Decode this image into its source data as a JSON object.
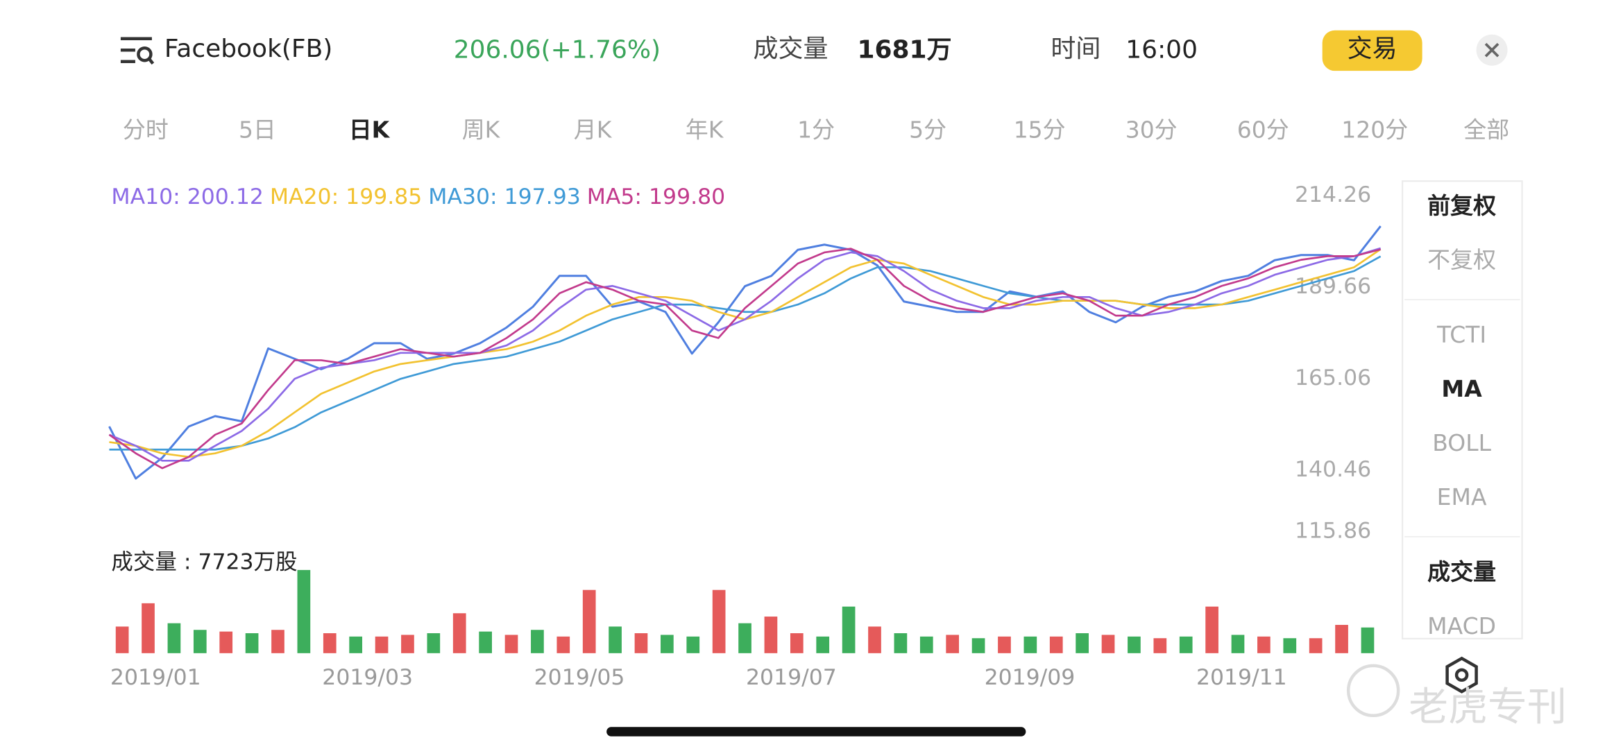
{
  "header": {
    "title": "Facebook(FB)",
    "price": "206.06(+1.76%)",
    "volume_label": "成交量",
    "volume": "1681万",
    "time_label": "时间",
    "time": "16:00",
    "trade_button": "交易"
  },
  "tabs": [
    "分时",
    "5日",
    "日K",
    "周K",
    "月K",
    "年K",
    "1分",
    "5分",
    "15分",
    "30分",
    "60分",
    "120分",
    "全部"
  ],
  "active_tab": 2,
  "side_panel": [
    [
      {
        "label": "前复权",
        "active": true
      },
      {
        "label": "不复权",
        "active": false
      }
    ],
    [
      {
        "label": "TCTI",
        "active": false
      },
      {
        "label": "MA",
        "active": true
      },
      {
        "label": "BOLL",
        "active": false
      },
      {
        "label": "EMA",
        "active": false
      }
    ],
    [
      {
        "label": "成交量",
        "active": true
      },
      {
        "label": "MACD",
        "active": false
      }
    ]
  ],
  "watermark": "老虎专刊",
  "chart_data": [
    {
      "type": "line",
      "categories": [
        "2019/01",
        null,
        null,
        null,
        null,
        null,
        null,
        null,
        "2019/03",
        null,
        null,
        null,
        null,
        null,
        null,
        null,
        "2019/05",
        null,
        null,
        null,
        null,
        null,
        null,
        null,
        "2019/07",
        null,
        null,
        null,
        null,
        null,
        null,
        null,
        null,
        "2019/09",
        null,
        null,
        null,
        null,
        null,
        null,
        null,
        "2019/11",
        null,
        null,
        null,
        null,
        null,
        null,
        null
      ],
      "ylim": [
        115.86,
        214.26
      ],
      "yticks": [
        214.26,
        189.66,
        165.06,
        140.46,
        115.86
      ],
      "series": [
        {
          "color": "#4f7fe0",
          "values": [
            152.2,
            138.2,
            143.8,
            152.2,
            155.0,
            153.6,
            173.2,
            170.4,
            167.6,
            170.4,
            174.6,
            174.6,
            170.4,
            171.8,
            174.6,
            178.8,
            184.4,
            192.7,
            192.7,
            184.4,
            185.8,
            183.0,
            171.8,
            180.2,
            189.9,
            192.7,
            199.7,
            201.1,
            199.7,
            195.5,
            185.8,
            184.4,
            183.0,
            183.0,
            188.5,
            187.1,
            188.5,
            183.0,
            180.2,
            184.4,
            187.1,
            188.5,
            191.3,
            192.7,
            196.9,
            198.3,
            198.3,
            196.9,
            206.06
          ]
        },
        {
          "name": "MA30: 197.93",
          "color": "#3f9ad6",
          "values": [
            146,
            146,
            146,
            146,
            146,
            147,
            149,
            152,
            156,
            159,
            162,
            165,
            167,
            169,
            170,
            171,
            173,
            175,
            178,
            181,
            183,
            185,
            185,
            184,
            183,
            183,
            185,
            188,
            192,
            195,
            195,
            194,
            192,
            190,
            188,
            187,
            186,
            186,
            186,
            185,
            185,
            185,
            185,
            186,
            188,
            190,
            192,
            194,
            197.93
          ]
        },
        {
          "name": "MA20: 199.85",
          "color": "#f2c230",
          "values": [
            148,
            147,
            145,
            144,
            145,
            147,
            151,
            156,
            161,
            164,
            167,
            169,
            170,
            171,
            172,
            173,
            175,
            178,
            182,
            185,
            187,
            187,
            186,
            183,
            181,
            183,
            187,
            191,
            195,
            197,
            196,
            193,
            190,
            187,
            185,
            185,
            186,
            186,
            186,
            185,
            184,
            184,
            185,
            187,
            189,
            191,
            193,
            195,
            199.85
          ]
        },
        {
          "name": "MA10: 200.12",
          "color": "#8c6ae6",
          "values": [
            150,
            147,
            143,
            143,
            147,
            151,
            157,
            165,
            168,
            169,
            170,
            172,
            172,
            172,
            172,
            174,
            178,
            184,
            189,
            190,
            188,
            186,
            182,
            178,
            181,
            186,
            192,
            197,
            199,
            198,
            194,
            189,
            186,
            184,
            184,
            186,
            187,
            187,
            184,
            182,
            183,
            185,
            188,
            190,
            193,
            195,
            197,
            198,
            200.12
          ]
        },
        {
          "name": "MA5: 199.80",
          "color": "#c23a8c",
          "values": [
            150,
            145,
            141,
            144,
            150,
            153,
            162,
            170,
            170,
            169,
            171,
            173,
            172,
            171,
            172,
            176,
            181,
            188,
            191,
            189,
            186,
            185,
            178,
            176,
            184,
            190,
            196,
            199,
            200,
            197,
            190,
            186,
            184,
            183,
            185,
            187,
            188,
            186,
            182,
            182,
            185,
            187,
            190,
            192,
            195,
            197,
            198,
            198,
            199.8
          ]
        }
      ],
      "legend_order": [
        3,
        2,
        1,
        4
      ]
    },
    {
      "type": "bar",
      "title": "成交量 : 7723万股",
      "ylim": [
        0,
        25000
      ],
      "values": [
        8000,
        15000,
        9000,
        7000,
        6500,
        6000,
        7000,
        25000,
        6000,
        5000,
        5000,
        5500,
        6000,
        12000,
        6500,
        5500,
        7000,
        5000,
        19000,
        8000,
        6000,
        5500,
        5000,
        19000,
        9000,
        11000,
        6000,
        5000,
        14000,
        8000,
        6000,
        5000,
        5500,
        4500,
        5000,
        5000,
        5000,
        6000,
        5500,
        5000,
        4500,
        5000,
        14000,
        5500,
        5000,
        4500,
        4500,
        8500,
        7723
      ],
      "colors": [
        "#e55a5a",
        "#e55a5a",
        "#3dae5c",
        "#3dae5c",
        "#e55a5a",
        "#3dae5c",
        "#e55a5a",
        "#3dae5c",
        "#e55a5a",
        "#3dae5c",
        "#e55a5a",
        "#e55a5a",
        "#3dae5c",
        "#e55a5a",
        "#3dae5c",
        "#e55a5a",
        "#3dae5c",
        "#e55a5a",
        "#e55a5a",
        "#3dae5c",
        "#e55a5a",
        "#3dae5c",
        "#3dae5c",
        "#e55a5a",
        "#3dae5c",
        "#e55a5a",
        "#e55a5a",
        "#3dae5c",
        "#3dae5c",
        "#e55a5a",
        "#3dae5c",
        "#3dae5c",
        "#e55a5a",
        "#3dae5c",
        "#e55a5a",
        "#3dae5c",
        "#e55a5a",
        "#3dae5c",
        "#e55a5a",
        "#3dae5c",
        "#e55a5a",
        "#3dae5c",
        "#e55a5a",
        "#3dae5c",
        "#e55a5a",
        "#3dae5c",
        "#e55a5a",
        "#e55a5a",
        "#3dae5c"
      ]
    }
  ]
}
